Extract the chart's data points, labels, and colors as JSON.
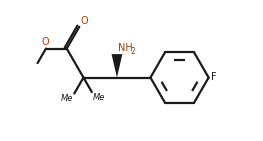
{
  "bg_color": "#ffffff",
  "line_color": "#1a1a1a",
  "bond_lw": 1.6,
  "nh2_color": "#8B4513",
  "o_color": "#cc3300",
  "fig_w": 2.63,
  "fig_h": 1.41,
  "dpi": 100,
  "fs_label": 7.0,
  "fs_sub": 5.5,
  "xlim": [
    -0.62,
    1.55
  ],
  "ylim": [
    -0.72,
    0.88
  ]
}
